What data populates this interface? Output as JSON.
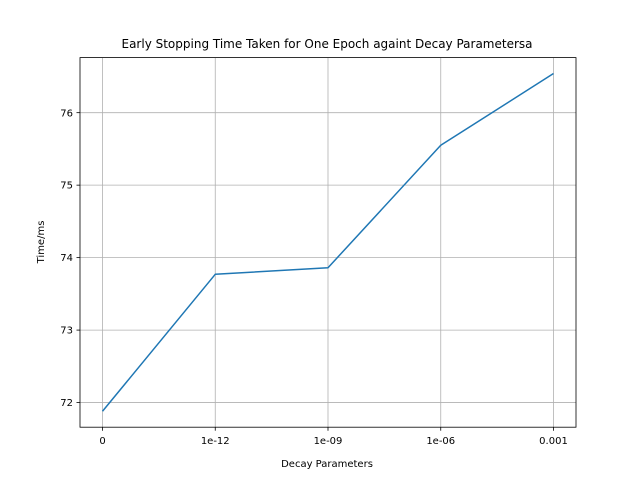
{
  "chart_data": {
    "type": "line",
    "title": "Early Stopping Time Taken for One Epoch againt Decay Parametersa",
    "xlabel": "Decay Parameters",
    "ylabel": "Time/ms",
    "categories": [
      "0",
      "1e-12",
      "1e-09",
      "1e-06",
      "0.001"
    ],
    "series": [
      {
        "values": [
          71.88,
          73.77,
          73.86,
          75.55,
          76.54
        ],
        "color": "#1f77b4"
      }
    ],
    "ylim": [
      71.66,
      76.76
    ],
    "yticks": [
      72,
      73,
      74,
      75,
      76
    ],
    "grid": true
  }
}
